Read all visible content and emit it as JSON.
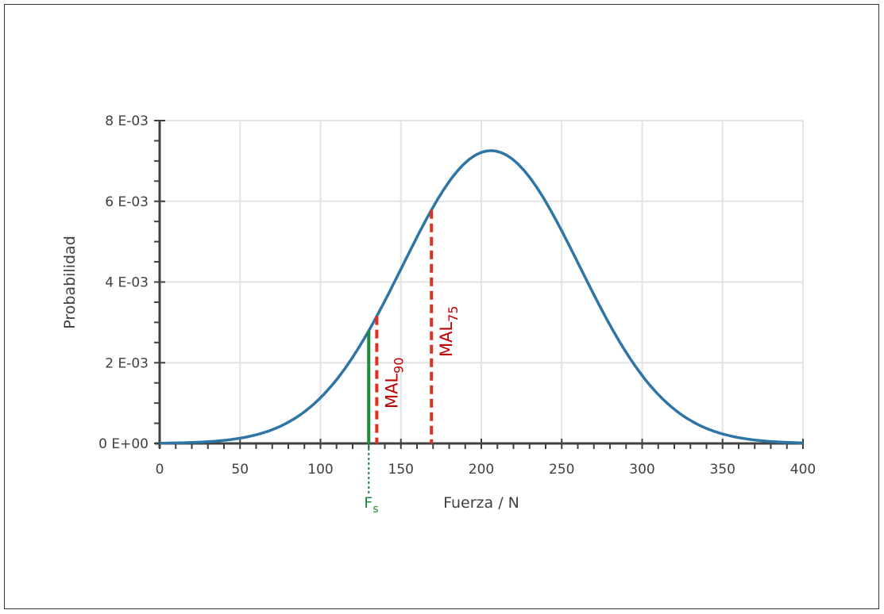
{
  "chart_data": {
    "type": "line",
    "title": "",
    "xlabel": "Fuerza / N",
    "ylabel": "Probabilidad",
    "xlim": [
      0,
      400
    ],
    "ylim": [
      0,
      0.008
    ],
    "x_ticks": [
      0,
      50,
      100,
      150,
      200,
      250,
      300,
      350,
      400
    ],
    "x_tick_labels": [
      "0",
      "50",
      "100",
      "150",
      "200",
      "250",
      "300",
      "350",
      "400"
    ],
    "y_ticks": [
      0,
      0.002,
      0.004,
      0.006,
      0.008
    ],
    "y_tick_labels": [
      "0 E+00",
      "2 E-03",
      "4 E-03",
      "6 E-03",
      "8 E-03"
    ],
    "grid": true,
    "series": [
      {
        "name": "Normal distribution",
        "distribution": "normal",
        "mean": 206,
        "sd": 55,
        "color": "#2e75a6"
      }
    ],
    "annotations": [
      {
        "label": "F",
        "sub": "s",
        "x": 130,
        "color": "#1e8a3a",
        "style": "solid"
      },
      {
        "label": "MAL",
        "sub": "90",
        "x": 135,
        "color": "#e03020",
        "text_color": "#c00000",
        "style": "dashed"
      },
      {
        "label": "MAL",
        "sub": "75",
        "x": 169,
        "color": "#e03020",
        "text_color": "#c00000",
        "style": "dashed"
      }
    ]
  }
}
